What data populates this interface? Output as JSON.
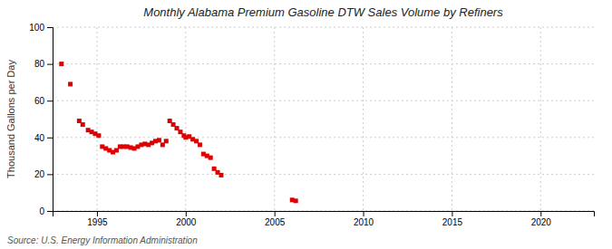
{
  "chart_data": {
    "type": "scatter",
    "title": "Monthly Alabama Premium Gasoline DTW Sales Volume by Refiners",
    "ylabel": "Thousand Gallons per Day",
    "annotations": [
      "Source: U.S. Energy Information Administration"
    ],
    "color": "#dd0000",
    "marker": "square",
    "grid": true,
    "xlim": [
      1992.5,
      2023
    ],
    "ylim": [
      0,
      100
    ],
    "xticks": [
      1995,
      2000,
      2005,
      2010,
      2015,
      2020
    ],
    "yticks": [
      0,
      20,
      40,
      60,
      80,
      100
    ],
    "x": [
      1993.0,
      1993.5,
      1994.0,
      1994.2,
      1994.5,
      1994.7,
      1994.9,
      1995.1,
      1995.3,
      1995.5,
      1995.7,
      1995.9,
      1996.1,
      1996.3,
      1996.5,
      1996.7,
      1996.9,
      1997.1,
      1997.3,
      1997.5,
      1997.7,
      1997.9,
      1998.1,
      1998.3,
      1998.5,
      1998.7,
      1998.9,
      1999.1,
      1999.3,
      1999.5,
      1999.7,
      1999.9,
      2000.0,
      2000.2,
      2000.4,
      2000.6,
      2000.8,
      2001.0,
      2001.2,
      2001.4,
      2001.6,
      2001.8,
      2002.0,
      2006.0,
      2006.2
    ],
    "values": [
      80.0,
      69.0,
      49.0,
      47.0,
      44.0,
      43.0,
      42.0,
      41.0,
      35.0,
      34.0,
      33.0,
      32.0,
      33.0,
      35.0,
      35.0,
      35.0,
      34.5,
      34.0,
      35.0,
      36.0,
      36.5,
      36.0,
      37.0,
      38.0,
      38.5,
      36.0,
      38.0,
      49.0,
      47.0,
      45.0,
      43.0,
      41.0,
      40.0,
      40.5,
      39.0,
      38.0,
      36.0,
      31.0,
      30.0,
      29.0,
      23.0,
      21.0,
      19.5,
      6.0,
      5.5
    ]
  }
}
